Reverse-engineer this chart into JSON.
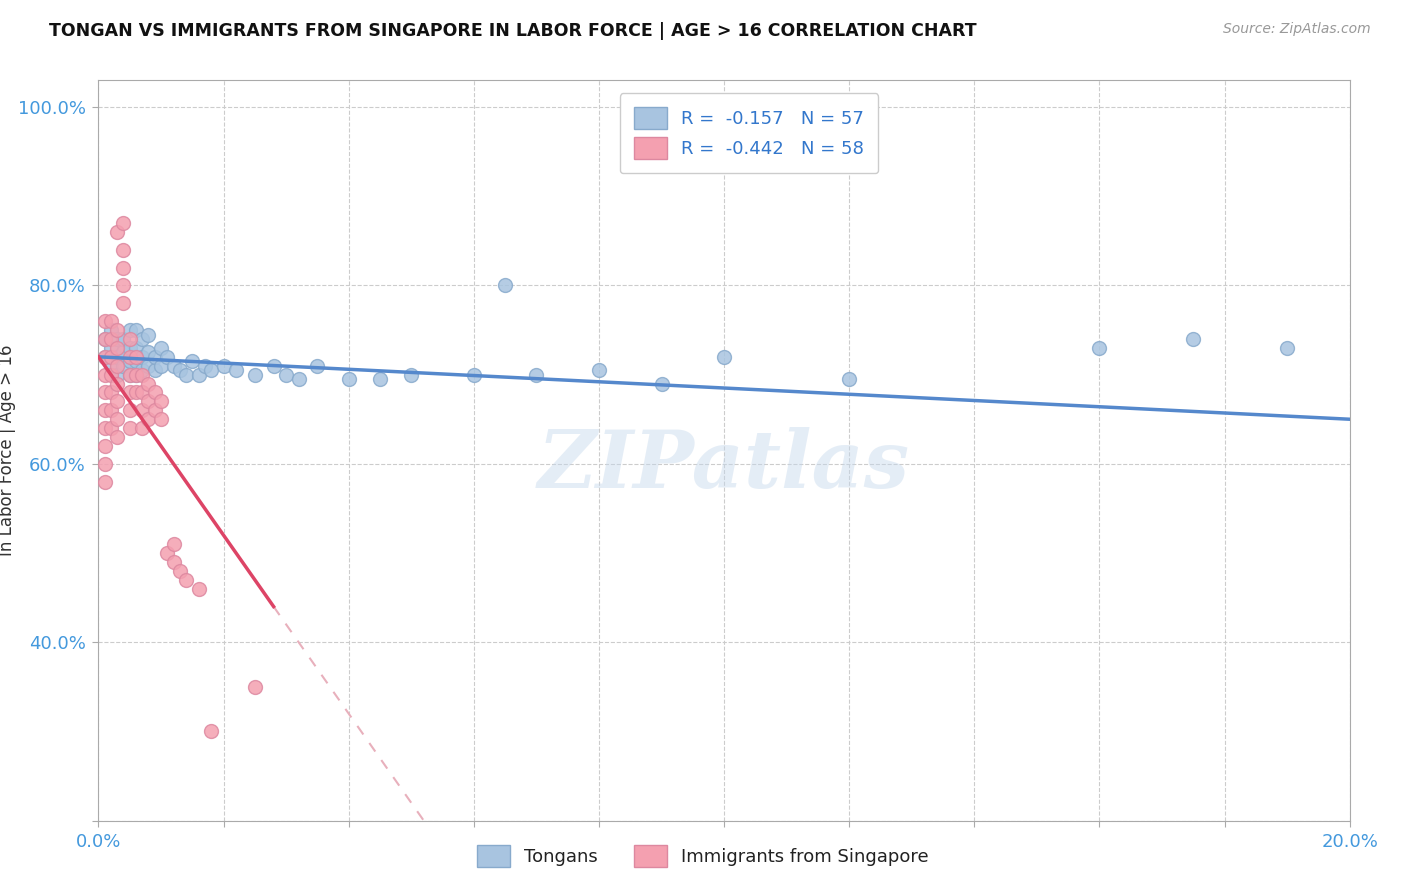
{
  "title": "TONGAN VS IMMIGRANTS FROM SINGAPORE IN LABOR FORCE | AGE > 16 CORRELATION CHART",
  "source": "Source: ZipAtlas.com",
  "ylabel": "In Labor Force | Age > 16",
  "xlim": [
    0.0,
    0.2
  ],
  "ylim": [
    0.2,
    1.03
  ],
  "xticks": [
    0.0,
    0.02,
    0.04,
    0.06,
    0.08,
    0.1,
    0.12,
    0.14,
    0.16,
    0.18,
    0.2
  ],
  "yticks": [
    0.2,
    0.4,
    0.6,
    0.8,
    1.0
  ],
  "R_tongans": -0.157,
  "N_tongans": 57,
  "R_singapore": -0.442,
  "N_singapore": 58,
  "tongans_color": "#a8c4e0",
  "singapore_color": "#f4a0b0",
  "trend_tongans_color": "#5588cc",
  "trend_singapore_color": "#dd4466",
  "trend_singapore_dashed_color": "#e8b0bc",
  "watermark": "ZIPatlas",
  "tongans_x": [
    0.001,
    0.001,
    0.002,
    0.002,
    0.002,
    0.003,
    0.003,
    0.003,
    0.004,
    0.004,
    0.004,
    0.005,
    0.005,
    0.005,
    0.005,
    0.006,
    0.006,
    0.006,
    0.006,
    0.007,
    0.007,
    0.007,
    0.008,
    0.008,
    0.008,
    0.009,
    0.009,
    0.01,
    0.01,
    0.011,
    0.012,
    0.013,
    0.014,
    0.015,
    0.016,
    0.017,
    0.018,
    0.02,
    0.022,
    0.025,
    0.028,
    0.03,
    0.032,
    0.035,
    0.04,
    0.045,
    0.05,
    0.06,
    0.065,
    0.07,
    0.08,
    0.09,
    0.1,
    0.12,
    0.16,
    0.175,
    0.19
  ],
  "tongans_y": [
    0.72,
    0.74,
    0.71,
    0.73,
    0.75,
    0.7,
    0.72,
    0.74,
    0.71,
    0.725,
    0.74,
    0.7,
    0.715,
    0.73,
    0.75,
    0.7,
    0.715,
    0.73,
    0.75,
    0.705,
    0.72,
    0.74,
    0.71,
    0.725,
    0.745,
    0.705,
    0.72,
    0.71,
    0.73,
    0.72,
    0.71,
    0.705,
    0.7,
    0.715,
    0.7,
    0.71,
    0.705,
    0.71,
    0.705,
    0.7,
    0.71,
    0.7,
    0.695,
    0.71,
    0.695,
    0.695,
    0.7,
    0.7,
    0.8,
    0.7,
    0.705,
    0.69,
    0.72,
    0.695,
    0.73,
    0.74,
    0.73
  ],
  "singapore_x": [
    0.001,
    0.001,
    0.001,
    0.001,
    0.001,
    0.001,
    0.001,
    0.001,
    0.001,
    0.001,
    0.002,
    0.002,
    0.002,
    0.002,
    0.002,
    0.002,
    0.002,
    0.003,
    0.003,
    0.003,
    0.003,
    0.003,
    0.003,
    0.003,
    0.003,
    0.004,
    0.004,
    0.004,
    0.004,
    0.004,
    0.005,
    0.005,
    0.005,
    0.005,
    0.005,
    0.005,
    0.006,
    0.006,
    0.006,
    0.007,
    0.007,
    0.007,
    0.007,
    0.008,
    0.008,
    0.008,
    0.009,
    0.009,
    0.01,
    0.01,
    0.011,
    0.012,
    0.012,
    0.013,
    0.014,
    0.016,
    0.018,
    0.025
  ],
  "singapore_y": [
    0.76,
    0.74,
    0.72,
    0.7,
    0.68,
    0.66,
    0.64,
    0.62,
    0.6,
    0.58,
    0.76,
    0.74,
    0.72,
    0.7,
    0.68,
    0.66,
    0.64,
    0.75,
    0.73,
    0.71,
    0.69,
    0.67,
    0.65,
    0.63,
    0.86,
    0.87,
    0.84,
    0.82,
    0.8,
    0.78,
    0.74,
    0.72,
    0.7,
    0.68,
    0.66,
    0.64,
    0.72,
    0.7,
    0.68,
    0.7,
    0.68,
    0.66,
    0.64,
    0.69,
    0.67,
    0.65,
    0.68,
    0.66,
    0.67,
    0.65,
    0.5,
    0.51,
    0.49,
    0.48,
    0.47,
    0.46,
    0.3,
    0.35
  ]
}
